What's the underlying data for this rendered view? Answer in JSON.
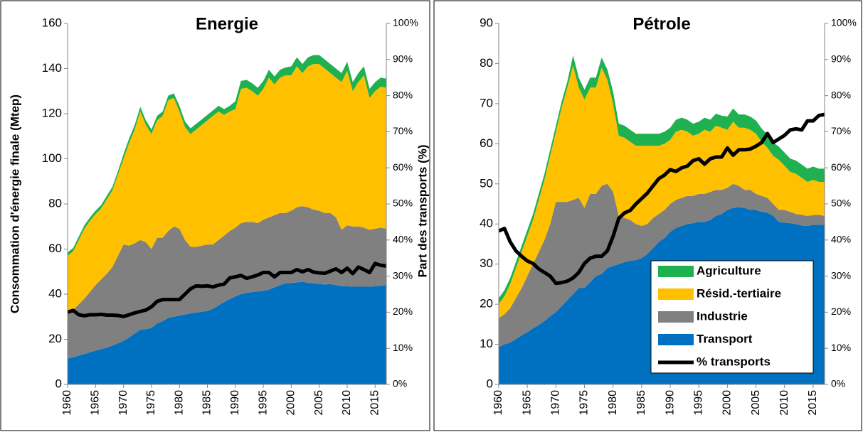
{
  "chart_data": [
    {
      "type": "stacked-area",
      "title": "Energie",
      "y_label": "Consommation d'énergie finale (Mtep)",
      "y2_label": "Part des transports (%)",
      "x": [
        1960,
        1961,
        1962,
        1963,
        1964,
        1965,
        1966,
        1967,
        1968,
        1969,
        1970,
        1971,
        1972,
        1973,
        1974,
        1975,
        1976,
        1977,
        1978,
        1979,
        1980,
        1981,
        1982,
        1983,
        1984,
        1985,
        1986,
        1987,
        1988,
        1989,
        1990,
        1991,
        1992,
        1993,
        1994,
        1995,
        1996,
        1997,
        1998,
        1999,
        2000,
        2001,
        2002,
        2003,
        2004,
        2005,
        2006,
        2007,
        2008,
        2009,
        2010,
        2011,
        2012,
        2013,
        2014,
        2015,
        2016,
        2017
      ],
      "xlim": [
        1960,
        2017
      ],
      "xticks": [
        1960,
        1965,
        1970,
        1975,
        1980,
        1985,
        1990,
        1995,
        2000,
        2005,
        2010,
        2015
      ],
      "ylim": [
        0,
        160
      ],
      "yticks": [
        0,
        20,
        40,
        60,
        80,
        100,
        120,
        140,
        160
      ],
      "y2lim": [
        0,
        100
      ],
      "y2ticks": [
        {
          "value": 0,
          "label": "0%"
        },
        {
          "value": 10,
          "label": "10%"
        },
        {
          "value": 20,
          "label": "20%"
        },
        {
          "value": 30,
          "label": "30%"
        },
        {
          "value": 40,
          "label": "40%"
        },
        {
          "value": 50,
          "label": "50%"
        },
        {
          "value": 60,
          "label": "60%"
        },
        {
          "value": 70,
          "label": "70%"
        },
        {
          "value": 80,
          "label": "80%"
        },
        {
          "value": 90,
          "label": "90%"
        },
        {
          "value": 100,
          "label": "100%"
        }
      ],
      "legend": false,
      "series": [
        {
          "name": "Transport",
          "color": "#0070c0",
          "values": [
            11.5,
            12,
            12.8,
            13.5,
            14.2,
            15,
            15.6,
            16.3,
            17.2,
            18.2,
            19.3,
            20.8,
            22.5,
            24.2,
            24.5,
            25,
            27,
            28,
            29.5,
            30,
            30.5,
            31,
            31.5,
            31.8,
            32.2,
            32.5,
            33.5,
            35,
            36.5,
            37.8,
            39,
            40,
            40.5,
            41,
            41.2,
            41.5,
            42,
            43,
            44,
            44.8,
            45,
            45.2,
            45.5,
            45,
            44.8,
            44.5,
            44.3,
            44.5,
            44,
            43.5,
            43.5,
            43.3,
            43.3,
            43.3,
            43.3,
            43.5,
            43.7,
            44
          ]
        },
        {
          "name": "Industrie",
          "color": "#808080",
          "values": [
            20.5,
            21,
            22.7,
            24.5,
            26.8,
            29,
            30.9,
            32.7,
            34.8,
            38.8,
            42.7,
            40.7,
            40,
            39.8,
            38.5,
            35,
            38,
            37,
            38.5,
            40,
            38.5,
            33,
            29.5,
            29.2,
            29.3,
            29.5,
            28.5,
            29,
            29.5,
            30.2,
            30.5,
            31.5,
            31.5,
            31,
            30.3,
            31.5,
            32,
            32,
            32,
            31.2,
            32,
            33.3,
            33.5,
            33.5,
            32.7,
            32.5,
            31.7,
            31.5,
            30,
            25,
            27,
            26.7,
            26.7,
            26.2,
            25.2,
            25.5,
            25.8,
            25
          ]
        },
        {
          "name": "Résid.-tertiaire",
          "color": "#ffc000",
          "values": [
            25,
            26,
            28.5,
            31,
            31.5,
            31.5,
            31.5,
            33,
            34,
            36,
            38,
            45.5,
            50.5,
            57,
            52,
            51,
            52,
            54,
            58,
            57,
            52,
            50,
            50,
            52,
            53.5,
            55,
            57,
            57,
            53.5,
            53,
            52.5,
            59.5,
            59.5,
            58,
            56.5,
            58,
            62,
            58,
            60,
            61,
            60,
            62.5,
            59,
            62.5,
            64.5,
            65,
            64,
            62,
            62,
            65.5,
            68.5,
            60,
            64,
            67.5,
            58.5,
            61,
            62.5,
            62.5
          ]
        },
        {
          "name": "Agriculture",
          "color": "#1fb050",
          "values": [
            1.5,
            1.5,
            1.5,
            1.5,
            1.5,
            1.5,
            1.5,
            1.5,
            1.5,
            1.5,
            2,
            2,
            2,
            2,
            2,
            2,
            2,
            2,
            2,
            2,
            2.5,
            2.5,
            2.5,
            2.5,
            2.5,
            2.5,
            2.5,
            2.5,
            2.5,
            2.5,
            3.5,
            3.5,
            3.5,
            3.5,
            3.5,
            3.5,
            3.5,
            3.5,
            3.5,
            3.5,
            4,
            4,
            4,
            4,
            4,
            4,
            4,
            4,
            4,
            4,
            4,
            4,
            4,
            4,
            4,
            4,
            4,
            4
          ]
        },
        {
          "name": "% transports",
          "color": "#000000",
          "axis": "y2",
          "values": [
            20,
            20.5,
            19.3,
            19,
            19.3,
            19.3,
            19.4,
            19.2,
            19.2,
            19.1,
            18.8,
            19.3,
            19.8,
            20.2,
            20.6,
            21.5,
            23,
            23.5,
            23.5,
            23.5,
            23.5,
            25,
            26.5,
            27.3,
            27.2,
            27.3,
            27,
            27.5,
            27.8,
            29.5,
            29.8,
            30.2,
            29.4,
            29.8,
            30.3,
            31,
            31,
            29.8,
            31,
            31,
            31,
            31.8,
            31.2,
            31.8,
            31.1,
            30.9,
            30.8,
            31.4,
            32,
            31,
            32.2,
            30.7,
            32.5,
            31.8,
            31,
            33.5,
            33,
            32.8
          ]
        }
      ]
    },
    {
      "type": "stacked-area",
      "title": "Pétrole",
      "x": [
        1960,
        1961,
        1962,
        1963,
        1964,
        1965,
        1966,
        1967,
        1968,
        1969,
        1970,
        1971,
        1972,
        1973,
        1974,
        1975,
        1976,
        1977,
        1978,
        1979,
        1980,
        1981,
        1982,
        1983,
        1984,
        1985,
        1986,
        1987,
        1988,
        1989,
        1990,
        1991,
        1992,
        1993,
        1994,
        1995,
        1996,
        1997,
        1998,
        1999,
        2000,
        2001,
        2002,
        2003,
        2004,
        2005,
        2006,
        2007,
        2008,
        2009,
        2010,
        2011,
        2012,
        2013,
        2014,
        2015,
        2016,
        2017
      ],
      "xlim": [
        1960,
        2017
      ],
      "xticks": [
        1960,
        1965,
        1970,
        1975,
        1980,
        1985,
        1990,
        1995,
        2000,
        2005,
        2010,
        2015
      ],
      "ylim": [
        0,
        90
      ],
      "yticks": [
        0,
        10,
        20,
        30,
        40,
        50,
        60,
        70,
        80,
        90
      ],
      "y2lim": [
        0,
        100
      ],
      "y2ticks": [
        {
          "value": 0,
          "label": "0%"
        },
        {
          "value": 10,
          "label": "10%"
        },
        {
          "value": 20,
          "label": "20%"
        },
        {
          "value": 30,
          "label": "30%"
        },
        {
          "value": 40,
          "label": "40%"
        },
        {
          "value": 50,
          "label": "50%"
        },
        {
          "value": 60,
          "label": "60%"
        },
        {
          "value": 70,
          "label": "70%"
        },
        {
          "value": 80,
          "label": "80%"
        },
        {
          "value": 90,
          "label": "90%"
        },
        {
          "value": 100,
          "label": "100%"
        }
      ],
      "legend": "lower right",
      "series": [
        {
          "name": "Transport",
          "color": "#0070c0",
          "values": [
            9.3,
            10,
            10.4,
            11.3,
            12.2,
            13,
            14,
            14.8,
            15.8,
            17,
            18,
            19.5,
            21,
            22.5,
            24,
            24,
            25.5,
            27,
            27.5,
            29,
            29.5,
            30,
            30.5,
            30.8,
            31,
            31.5,
            32.5,
            34,
            35.5,
            36.5,
            38,
            39,
            39.5,
            40,
            40.2,
            40.5,
            40.5,
            41,
            42,
            42.5,
            43.5,
            44,
            44.2,
            44,
            43.5,
            43.5,
            43,
            42.8,
            42,
            40.5,
            40.3,
            40.2,
            40,
            39.6,
            39.5,
            39.8,
            39.8,
            39.8
          ]
        },
        {
          "name": "Industrie",
          "color": "#808080",
          "values": [
            7.2,
            7.5,
            8.6,
            10.2,
            11.8,
            14,
            16,
            18.2,
            20.2,
            23,
            27.5,
            26,
            24.5,
            23.5,
            22.5,
            20,
            22,
            20.5,
            22,
            21,
            18.5,
            12,
            11,
            10.2,
            9,
            8,
            7.5,
            7.5,
            7,
            7,
            7,
            7,
            7,
            7,
            6.8,
            7,
            7,
            7,
            6.5,
            6,
            5.5,
            6,
            5.3,
            4.5,
            5,
            4,
            4,
            3.7,
            3,
            3,
            3.2,
            2.8,
            2.5,
            2.7,
            2.5,
            2.4,
            2.5,
            2.2
          ]
        },
        {
          "name": "Résid.-tertiaire",
          "color": "#ffc000",
          "values": [
            3.5,
            4.5,
            6,
            7.5,
            9,
            10,
            11,
            13,
            15,
            17,
            17.5,
            23.5,
            28.5,
            33.5,
            27.5,
            27,
            26.5,
            26.5,
            29.5,
            26,
            22,
            20,
            20,
            19.5,
            19.5,
            20,
            19.5,
            18,
            17,
            16.5,
            16,
            17,
            17,
            16,
            15,
            15,
            16,
            15,
            16,
            15.5,
            14.5,
            15.5,
            14.5,
            15.5,
            15,
            15,
            13.5,
            12.5,
            12,
            12.5,
            11,
            10,
            10,
            9.2,
            8.5,
            8.8,
            8.2,
            8.5
          ]
        },
        {
          "name": "Agriculture",
          "color": "#1fb050",
          "values": [
            1.5,
            1.5,
            1.5,
            1.5,
            1.5,
            1.5,
            1.5,
            1.5,
            1.5,
            1.5,
            1.5,
            1.5,
            1.5,
            2.5,
            2.5,
            2.5,
            2.5,
            2.5,
            2.5,
            2.5,
            3,
            3,
            3,
            3,
            3,
            3,
            3,
            3,
            3,
            3,
            3,
            3,
            3,
            3,
            3,
            3,
            3,
            3,
            3,
            3,
            3.3,
            3.3,
            3.3,
            3.3,
            3.3,
            3.3,
            3.3,
            3.3,
            3.3,
            3.3,
            3.3,
            3.3,
            3.3,
            3.3,
            3.3,
            3.3,
            3.3,
            3.3
          ]
        },
        {
          "name": "% transports",
          "color": "#000000",
          "axis": "y2",
          "values": [
            42.5,
            43.2,
            39.5,
            37,
            35.5,
            34.2,
            33.5,
            32,
            31,
            30,
            28,
            28.2,
            28.6,
            29.5,
            31,
            33.5,
            35,
            35.5,
            35.5,
            37,
            41,
            46,
            47.5,
            48.2,
            50,
            51.5,
            53,
            55,
            57,
            58,
            59.5,
            59,
            60,
            60.5,
            62,
            62.5,
            61,
            62.5,
            63,
            63,
            65.5,
            63.5,
            65,
            65,
            65.2,
            66,
            67,
            69.5,
            67,
            68,
            69,
            70.5,
            70.8,
            70.5,
            73,
            73,
            74.5,
            74.8
          ]
        }
      ]
    }
  ]
}
